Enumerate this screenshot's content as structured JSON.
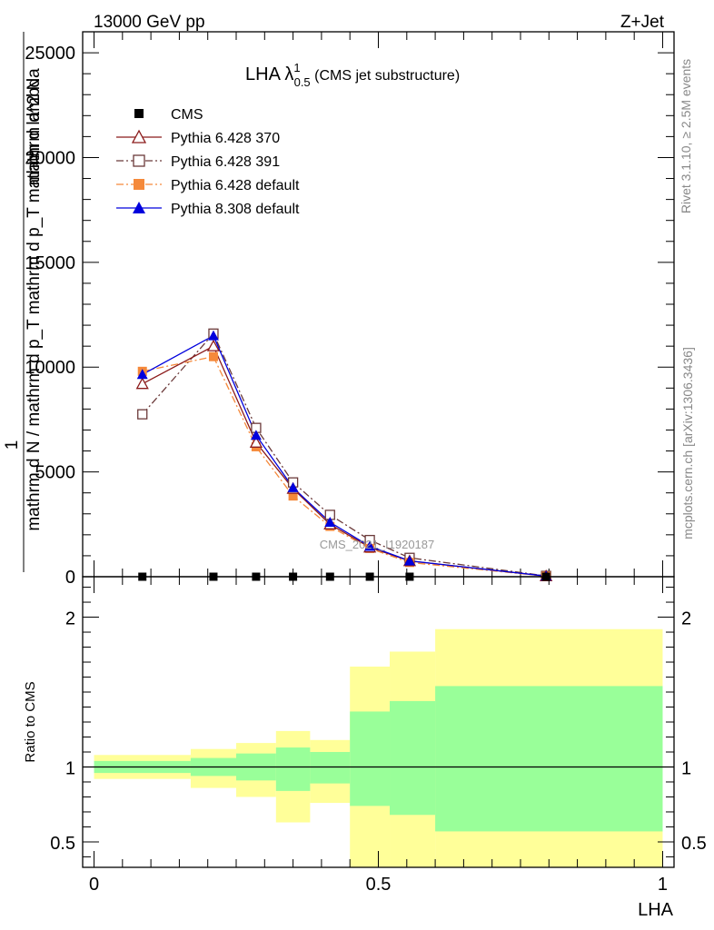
{
  "header": {
    "left": "13000 GeV pp",
    "right": "Z+Jet"
  },
  "plot_title": {
    "main": "LHA λ",
    "superscript": "1",
    "subscript": "0.5",
    "suffix": " (CMS jet substructure)"
  },
  "ylabel": {
    "numerator": "1",
    "denominator": "mathrm d N / mathrm d p_T mathrm d p_T mathrm d lambda"
  },
  "ylabel_top": "mathrm d^2 N",
  "side_labels": {
    "rivet": "Rivet 3.1.10, ≥ 2.5M events",
    "mcplots": "mcplots.cern.ch [arXiv:1306.3436]"
  },
  "watermark": "CMS_2021_I1920187",
  "ratio_ylabel": "Ratio to CMS",
  "xlabel": "LHA",
  "legend": {
    "placement": "top-left",
    "entries": [
      {
        "label": "CMS",
        "color": "#000000",
        "marker": "square-filled",
        "dash": "none"
      },
      {
        "label": "Pythia 6.428 370",
        "color": "#8b1a1a",
        "marker": "triangle-open",
        "dash": "solid"
      },
      {
        "label": "Pythia 6.428 391",
        "color": "#6b3a3a",
        "marker": "square-open",
        "dash": "dashdot"
      },
      {
        "label": "Pythia 6.428 default",
        "color": "#f5893a",
        "marker": "square-filled",
        "dash": "dashdot"
      },
      {
        "label": "Pythia 8.308 default",
        "color": "#0000dd",
        "marker": "triangle-filled",
        "dash": "solid"
      }
    ]
  },
  "chart_data": [
    {
      "type": "line",
      "panel": "main",
      "xlim": [
        -0.02,
        1.02
      ],
      "ylim": [
        0,
        26000
      ],
      "yticks": [
        0,
        5000,
        10000,
        15000,
        20000,
        25000
      ],
      "ytick_labels": [
        "0",
        "5000",
        "10000",
        "15000",
        "20000",
        "25000"
      ],
      "x": [
        0.085,
        0.21,
        0.285,
        0.35,
        0.415,
        0.485,
        0.555,
        0.795
      ],
      "series": [
        {
          "name": "CMS",
          "values": [
            0,
            0,
            0,
            0,
            0,
            0,
            0,
            0
          ]
        },
        {
          "name": "Pythia 6.428 370",
          "values": [
            9200,
            11000,
            6400,
            4200,
            2500,
            1400,
            750,
            30
          ]
        },
        {
          "name": "Pythia 6.428 391",
          "values": [
            7750,
            11600,
            7100,
            4500,
            2950,
            1750,
            900,
            40
          ]
        },
        {
          "name": "Pythia 6.428 default",
          "values": [
            9800,
            10500,
            6200,
            3850,
            2400,
            1350,
            680,
            25
          ]
        },
        {
          "name": "Pythia 8.308 default",
          "values": [
            9650,
            11500,
            6750,
            4250,
            2600,
            1450,
            760,
            30
          ]
        }
      ]
    },
    {
      "type": "area",
      "panel": "ratio",
      "xlim": [
        -0.02,
        1.02
      ],
      "ylim": [
        0.33,
        2.27
      ],
      "yticks": [
        0.5,
        1,
        2
      ],
      "ytick_labels": [
        "0.5",
        "1",
        "2"
      ],
      "xticks": [
        0,
        0.5,
        1
      ],
      "xtick_labels": [
        "0",
        "0.5",
        "1"
      ],
      "reference_line": 1,
      "bins": [
        0,
        0.17,
        0.25,
        0.32,
        0.38,
        0.45,
        0.52,
        0.6,
        1.0
      ],
      "band_total": {
        "name": "total uncertainty",
        "color": "#ffff99",
        "lower": [
          0.92,
          0.86,
          0.8,
          0.63,
          0.76,
          0.33,
          0.33,
          0.33
        ],
        "upper": [
          1.08,
          1.12,
          1.16,
          1.24,
          1.18,
          1.67,
          1.77,
          1.92
        ]
      },
      "band_stat": {
        "name": "statistical uncertainty",
        "color": "#99ff99",
        "lower": [
          0.96,
          0.94,
          0.91,
          0.84,
          0.89,
          0.74,
          0.68,
          0.57
        ],
        "upper": [
          1.04,
          1.06,
          1.09,
          1.13,
          1.1,
          1.37,
          1.44,
          1.54
        ]
      }
    }
  ]
}
